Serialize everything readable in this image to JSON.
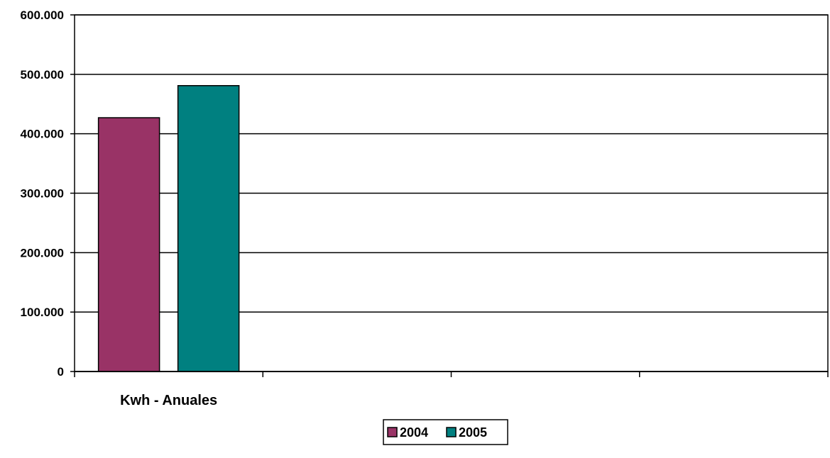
{
  "chart_data": {
    "type": "bar",
    "categories": [
      "Kwh - Anuales",
      "",
      "",
      ""
    ],
    "series": [
      {
        "name": "2004",
        "color": "#993366",
        "values": [
          427000,
          null,
          null,
          null
        ]
      },
      {
        "name": "2005",
        "color": "#008080",
        "values": [
          481000,
          null,
          null,
          null
        ]
      }
    ],
    "ylim": [
      0,
      600000
    ],
    "yticks": [
      0,
      100000,
      200000,
      300000,
      400000,
      500000,
      600000
    ],
    "ytick_labels": [
      "0",
      "100.000",
      "200.000",
      "300.000",
      "400.000",
      "500.000",
      "600.000"
    ],
    "grid": true,
    "legend_position": "bottom-center"
  }
}
